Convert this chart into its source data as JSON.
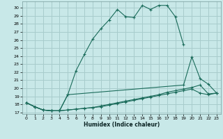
{
  "xlabel": "Humidex (Indice chaleur)",
  "bg_color": "#c8e8e8",
  "grid_color": "#a8cccc",
  "line_color": "#1a6b5a",
  "xlim": [
    -0.5,
    23.5
  ],
  "ylim": [
    16.8,
    30.8
  ],
  "xticks": [
    0,
    1,
    2,
    3,
    4,
    5,
    6,
    7,
    8,
    9,
    10,
    11,
    12,
    13,
    14,
    15,
    16,
    17,
    18,
    19,
    20,
    21,
    22,
    23
  ],
  "yticks": [
    17,
    18,
    19,
    20,
    21,
    22,
    23,
    24,
    25,
    26,
    27,
    28,
    29,
    30
  ],
  "line1_x": [
    0,
    1,
    2,
    3,
    4,
    5,
    6,
    7,
    8,
    9,
    10,
    11,
    12,
    13,
    14,
    15,
    16,
    17,
    18,
    19,
    20,
    21,
    22,
    23
  ],
  "line1_y": [
    18.2,
    17.7,
    17.3,
    17.2,
    17.2,
    19.2,
    22.2,
    24.2,
    26.1,
    27.4,
    28.5,
    29.8,
    28.9,
    28.8,
    30.3,
    29.8,
    30.3,
    30.3,
    28.9,
    25.4,
    null,
    null,
    null,
    null
  ],
  "line2_x": [
    0,
    1,
    2,
    3,
    4,
    5,
    19,
    20,
    21,
    22,
    23
  ],
  "line2_y": [
    18.2,
    17.7,
    17.3,
    17.2,
    17.2,
    19.2,
    20.4,
    23.9,
    21.2,
    20.5,
    19.4
  ],
  "line3_x": [
    0,
    1,
    2,
    3,
    4,
    5,
    6,
    7,
    8,
    9,
    10,
    11,
    12,
    13,
    14,
    15,
    16,
    17,
    18,
    19,
    20,
    21,
    22,
    23
  ],
  "line3_y": [
    18.2,
    17.7,
    17.3,
    17.2,
    17.2,
    17.3,
    17.4,
    17.5,
    17.6,
    17.8,
    18.0,
    18.2,
    18.4,
    18.6,
    18.8,
    19.0,
    19.2,
    19.5,
    19.7,
    19.9,
    20.1,
    20.4,
    19.3,
    19.4
  ],
  "line4_x": [
    0,
    1,
    2,
    3,
    4,
    5,
    6,
    7,
    8,
    9,
    10,
    11,
    12,
    13,
    14,
    15,
    16,
    17,
    18,
    19,
    20,
    21,
    22,
    23
  ],
  "line4_y": [
    18.2,
    17.7,
    17.3,
    17.2,
    17.2,
    17.3,
    17.4,
    17.5,
    17.6,
    17.7,
    17.9,
    18.1,
    18.3,
    18.5,
    18.7,
    18.9,
    19.1,
    19.3,
    19.5,
    19.7,
    19.9,
    19.4,
    19.2,
    19.4
  ]
}
